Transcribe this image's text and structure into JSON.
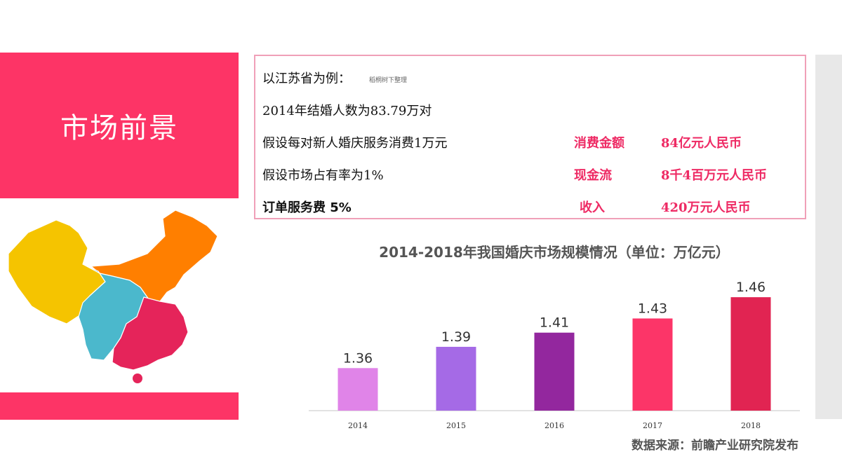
{
  "slide": {
    "title": "市场前景"
  },
  "info": {
    "lines": [
      "以江苏省为例：",
      "2014年结婚人数为83.79万对",
      "假设每对新人婚庆服务消费1万元",
      "假设市场占有率为1%",
      "订单服务费 5%"
    ],
    "note": "稻桐树下整理",
    "results": [
      {
        "label": "消费金额",
        "value": "84亿元人民币"
      },
      {
        "label": "现金流",
        "value": "8千4百万元人民币"
      },
      {
        "label": "收入",
        "value": "420万元人民币"
      }
    ]
  },
  "chart_data": {
    "type": "bar",
    "title": "2014-2018年我国婚庆市场规模情况（单位：万亿元）",
    "categories": [
      "2014",
      "2015",
      "2016",
      "2017",
      "2018"
    ],
    "values": [
      1.36,
      1.39,
      1.41,
      1.43,
      1.46
    ],
    "data_labels": [
      "1.36",
      "1.39",
      "1.41",
      "1.43",
      "1.46"
    ],
    "colors": [
      "#e084e8",
      "#a56ae6",
      "#93279e",
      "#fc3568",
      "#e12452"
    ],
    "xlabel": "",
    "ylabel": "",
    "ylim": [
      1.3,
      1.47
    ],
    "grid": false,
    "legend": "none"
  },
  "source": "数据来源：前瞻产业研究院发布",
  "map_colors": {
    "north": "#f5c400",
    "northeast": "#ff7f00",
    "middle": "#4bb8cc",
    "south": "#e5245a"
  }
}
